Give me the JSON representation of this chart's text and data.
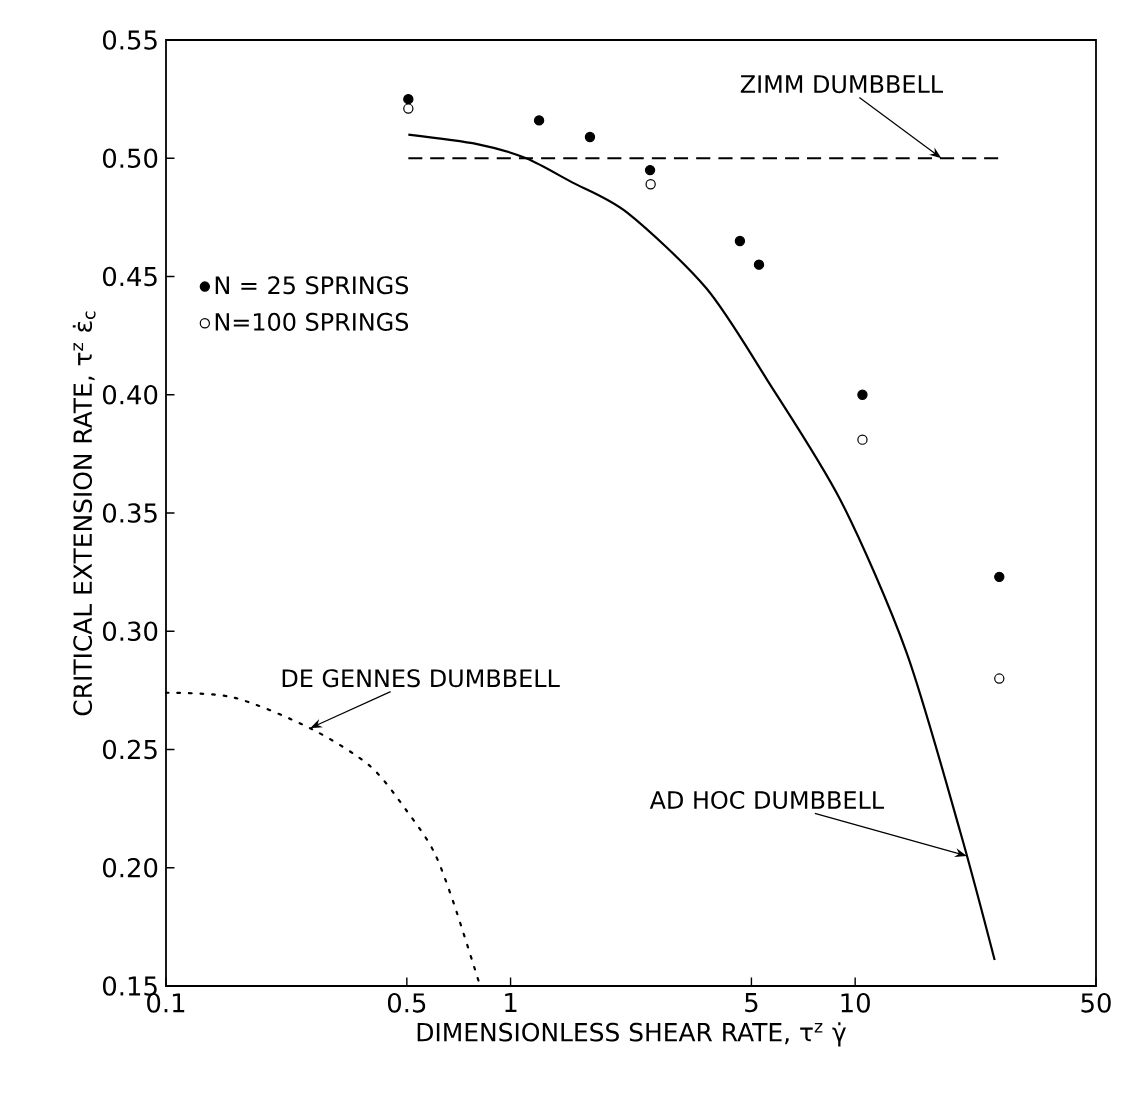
{
  "chart_data": {
    "type": "scatter",
    "xlabel": "DIMENSIONLESS SHEAR RATE, τ$^{z}$ γ̇",
    "ylabel": "CRITICAL EXTENSION RATE, τ$^{z}$ ε̇$_{c}$",
    "log": "x",
    "xlim": [
      0.1,
      50
    ],
    "ylim": [
      0.15,
      0.55
    ],
    "xticks": [
      0.1,
      0.5,
      1,
      5,
      10,
      50
    ],
    "yticks": [
      0.15,
      {
        "value": 0.2,
        "label": "0.20"
      },
      0.25,
      {
        "value": 0.3,
        "label": "0.30"
      },
      0.35,
      {
        "value": 0.4,
        "label": "0.40"
      },
      0.45,
      {
        "value": 0.5,
        "label": "0.50"
      },
      0.55
    ],
    "grid": false,
    "legend": "left",
    "series": [
      {
        "name": "N = 25 SPRINGS",
        "type": "scatter",
        "marker": "circle",
        "color": "#000000",
        "x": [
          0.505,
          1.21,
          1.7,
          2.54,
          4.63,
          5.26,
          10.5,
          26.2
        ],
        "values": [
          0.525,
          0.516,
          0.509,
          0.495,
          0.465,
          0.455,
          0.4,
          0.323
        ]
      },
      {
        "name": "N=100 SPRINGS",
        "type": "scatter",
        "marker": "circle",
        "color": "#ffffff",
        "x": [
          0.505,
          2.55,
          10.5,
          26.2
        ],
        "values": [
          0.521,
          0.489,
          0.381,
          0.28
        ]
      },
      {
        "type": "line",
        "line_style": "solid",
        "marker": "none",
        "color": "#000000",
        "x": [
          0.505,
          0.8,
          1.11,
          1.5,
          2.18,
          3.7,
          5.57,
          9.1,
          14.1,
          20.2,
          25.4
        ],
        "values": [
          0.51,
          0.506,
          0.5,
          0.49,
          0.477,
          0.445,
          0.406,
          0.355,
          0.291,
          0.215,
          0.161
        ]
      },
      {
        "type": "line",
        "line_style": "dashed",
        "marker": "none",
        "color": "#000000",
        "x": [
          0.505,
          26
        ],
        "values": [
          0.5,
          0.5
        ]
      },
      {
        "type": "line",
        "line_style": "dotted",
        "marker": "none",
        "color": "#000000",
        "x": [
          0.1,
          0.157,
          0.262,
          0.391,
          0.5,
          0.598,
          0.684,
          0.816
        ],
        "values": [
          0.274,
          0.272,
          0.259,
          0.243,
          0.224,
          0.207,
          0.185,
          0.15
        ]
      }
    ],
    "annotations": [
      {
        "text": "ZIMM DUMBBELL",
        "x": 17.8,
        "y": 0.5
      },
      {
        "text": "DE GENNES DUMBBELL",
        "x": 0.262,
        "y": 0.259
      },
      {
        "text": "AD HOC DUMBBELL",
        "x": 21.1,
        "y": 0.205
      }
    ]
  }
}
